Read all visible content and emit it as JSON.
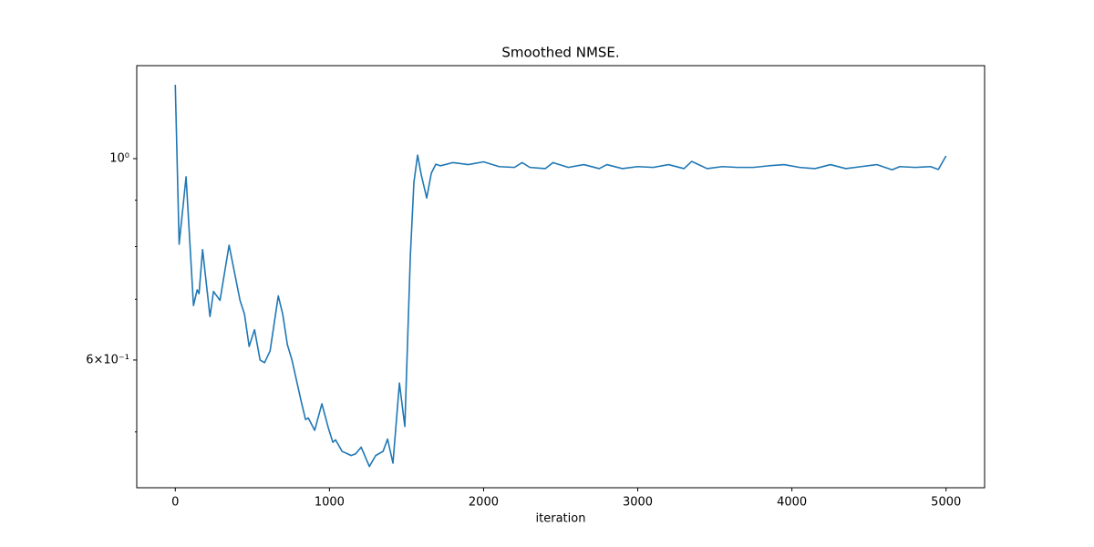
{
  "chart_data": {
    "type": "line",
    "title": "Smoothed NMSE.",
    "x_label": "iteration",
    "x": [
      0,
      25,
      70,
      118,
      142,
      154,
      177,
      225,
      248,
      290,
      349,
      420,
      449,
      479,
      514,
      550,
      579,
      615,
      668,
      697,
      727,
      757,
      816,
      845,
      863,
      904,
      951,
      993,
      1022,
      1040,
      1082,
      1141,
      1170,
      1206,
      1259,
      1300,
      1348,
      1377,
      1412,
      1454,
      1489,
      1525,
      1548,
      1572,
      1596,
      1631,
      1661,
      1690,
      1720,
      1750,
      1800,
      1900,
      2000,
      2100,
      2200,
      2250,
      2300,
      2400,
      2450,
      2550,
      2650,
      2750,
      2800,
      2900,
      3000,
      3100,
      3200,
      3300,
      3350,
      3450,
      3550,
      3650,
      3750,
      3850,
      3950,
      4050,
      4150,
      4250,
      4350,
      4450,
      4550,
      4650,
      4700,
      4800,
      4900,
      4950,
      5000
    ],
    "values": [
      1.206,
      0.805,
      0.955,
      0.689,
      0.717,
      0.71,
      0.794,
      0.67,
      0.714,
      0.698,
      0.803,
      0.698,
      0.674,
      0.621,
      0.648,
      0.6,
      0.596,
      0.614,
      0.706,
      0.674,
      0.624,
      0.6,
      0.541,
      0.516,
      0.518,
      0.502,
      0.537,
      0.505,
      0.487,
      0.49,
      0.476,
      0.471,
      0.473,
      0.481,
      0.458,
      0.471,
      0.476,
      0.491,
      0.462,
      0.566,
      0.507,
      0.783,
      0.942,
      1.009,
      0.959,
      0.905,
      0.964,
      0.986,
      0.982,
      0.985,
      0.99,
      0.985,
      0.992,
      0.98,
      0.978,
      0.99,
      0.978,
      0.975,
      0.99,
      0.978,
      0.985,
      0.975,
      0.985,
      0.975,
      0.98,
      0.978,
      0.985,
      0.975,
      0.993,
      0.975,
      0.98,
      0.978,
      0.978,
      0.982,
      0.985,
      0.978,
      0.975,
      0.985,
      0.975,
      0.98,
      0.985,
      0.972,
      0.98,
      0.978,
      0.98,
      0.973,
      1.007
    ],
    "color": "#1f77b4",
    "xlim": [
      -250,
      5250
    ],
    "xticks": [
      0,
      1000,
      2000,
      3000,
      4000,
      5000
    ],
    "ylim": [
      0.434,
      1.266
    ],
    "ylog": true,
    "yticks": [
      {
        "value": 1,
        "label": "10⁰"
      },
      {
        "value": 0.6,
        "label": "6×10⁻¹"
      }
    ],
    "yminorticks": [
      0.5,
      0.7,
      0.8,
      0.9
    ],
    "grid": false
  }
}
